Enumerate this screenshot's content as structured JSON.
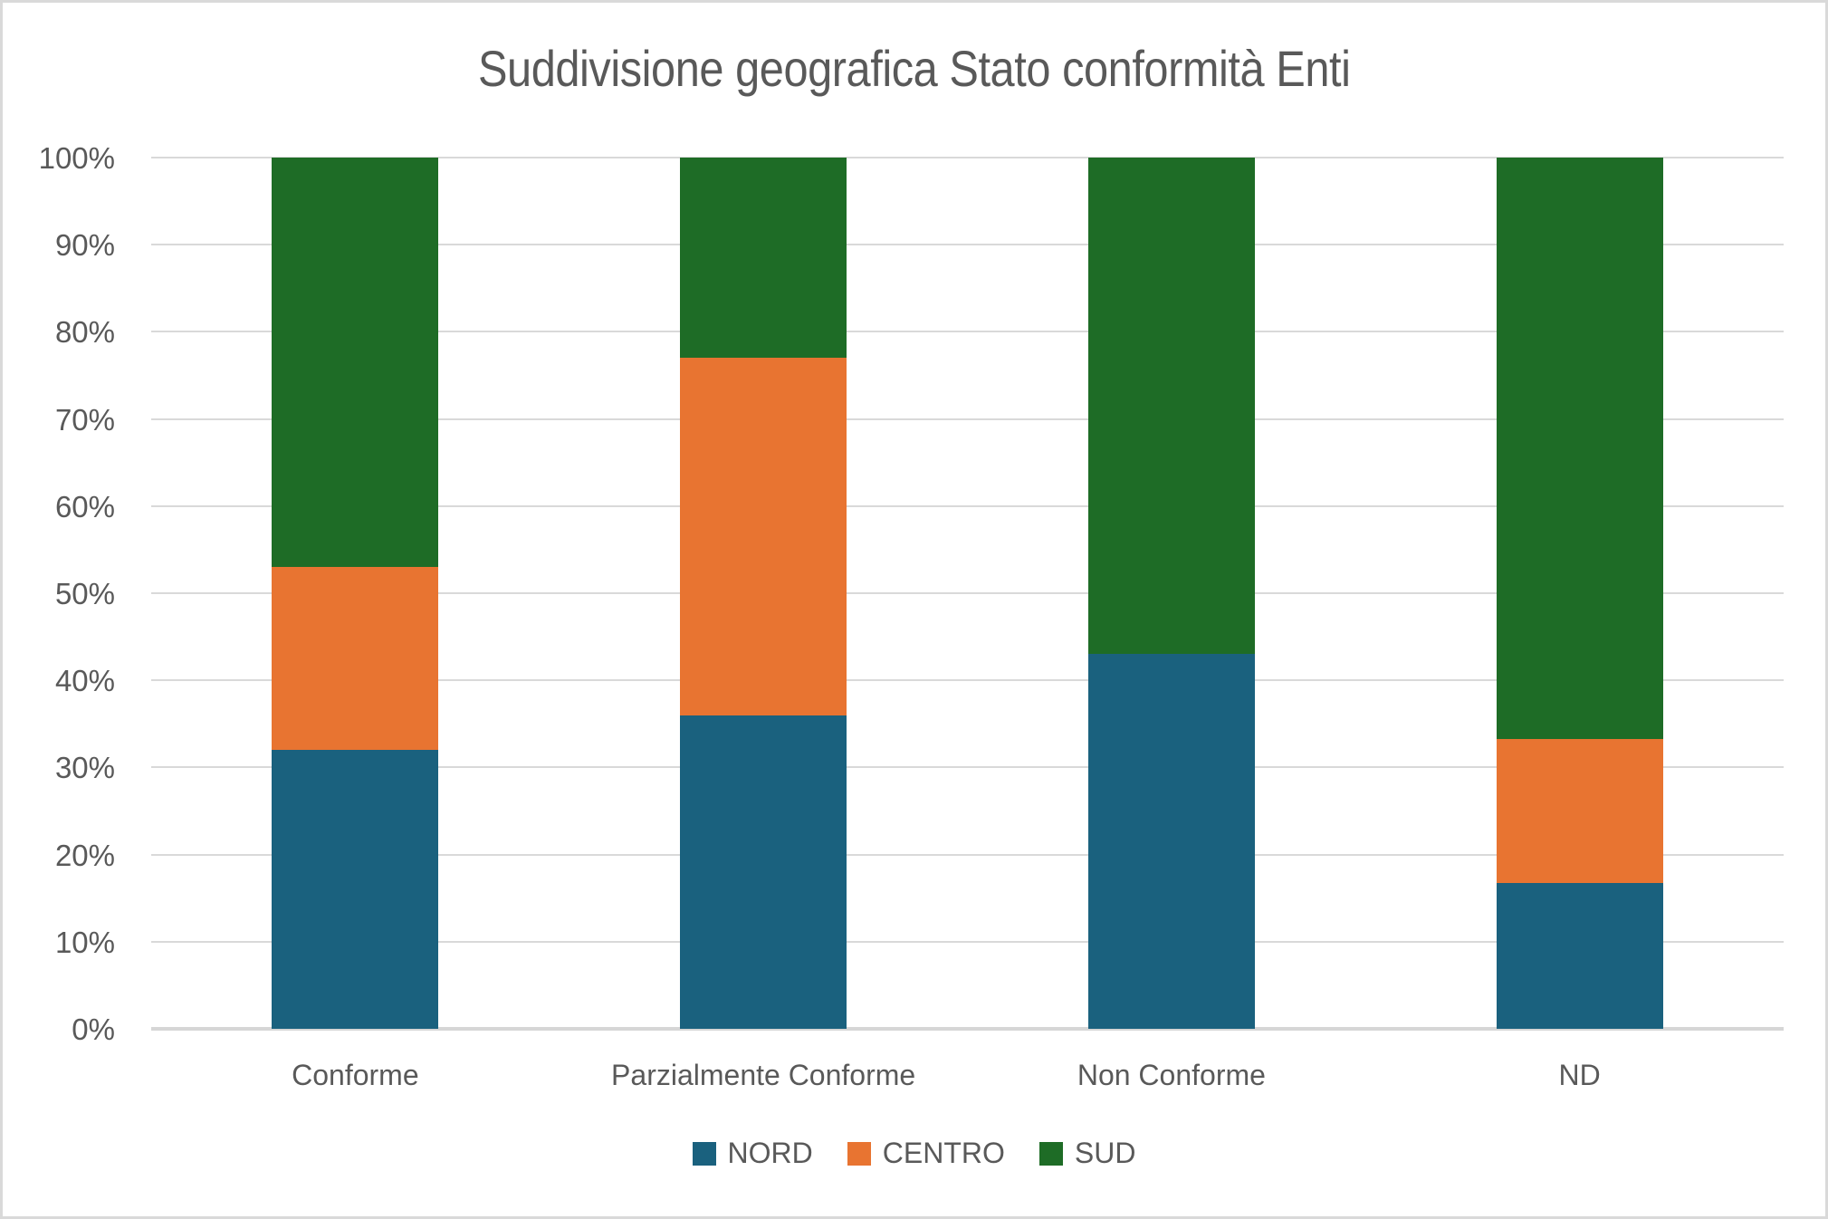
{
  "title": "Suddivisione geografica Stato conformità Enti",
  "colors": {
    "nord_blue": "#1A617E",
    "centro_orange": "#E87431",
    "sud_green": "#1E6C26",
    "text_gray": "#595959",
    "gridline_gray": "#D9D9D9"
  },
  "chart_data": {
    "type": "bar",
    "variant": "stacked-100-percent",
    "title": "Suddivisione geografica Stato conformità Enti",
    "categories": [
      "Conforme",
      "Parzialmente Conforme",
      "Non Conforme",
      "ND"
    ],
    "series": [
      {
        "name": "NORD",
        "color": "#1A617E",
        "values": [
          32,
          36,
          43,
          16.7
        ]
      },
      {
        "name": "CENTRO",
        "color": "#E87431",
        "values": [
          21,
          41,
          0,
          16.6
        ]
      },
      {
        "name": "SUD",
        "color": "#1E6C26",
        "values": [
          47,
          23,
          57,
          66.7
        ]
      }
    ],
    "xlabel": "",
    "ylabel": "",
    "y_axis": {
      "min": 0,
      "max": 100,
      "tick_step": 10,
      "tick_labels": [
        "0%",
        "10%",
        "20%",
        "30%",
        "40%",
        "50%",
        "60%",
        "70%",
        "80%",
        "90%",
        "100%"
      ],
      "grid": true
    },
    "legend": {
      "position": "bottom",
      "entries": [
        "NORD",
        "CENTRO",
        "SUD"
      ]
    }
  }
}
